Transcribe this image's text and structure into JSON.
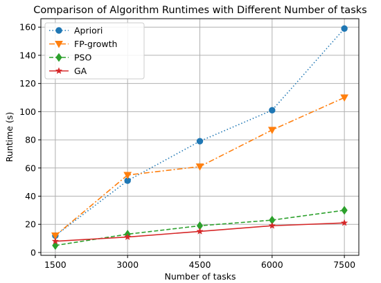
{
  "chart_data": {
    "type": "line",
    "title": "Comparison of Algorithm Runtimes with Different Number of tasks",
    "xlabel": "Number of tasks",
    "ylabel": "Runtime (s)",
    "x": [
      1500,
      3000,
      4500,
      6000,
      7500
    ],
    "xticks": [
      "1500",
      "3000",
      "4500",
      "6000",
      "7500"
    ],
    "yticks": [
      "0",
      "20",
      "40",
      "60",
      "80",
      "100",
      "120",
      "140",
      "160"
    ],
    "xlim": [
      1200,
      7800
    ],
    "ylim": [
      -2,
      166
    ],
    "grid": true,
    "legend_position": "top-left",
    "series": [
      {
        "name": "Apriori",
        "values": [
          12,
          51,
          79,
          101,
          159
        ],
        "color": "#1f77b4",
        "linestyle": "dotted",
        "marker": "circle"
      },
      {
        "name": "FP-growth",
        "values": [
          12,
          55,
          61,
          87,
          110
        ],
        "color": "#ff7f0e",
        "linestyle": "dashdot",
        "marker": "triangle-down"
      },
      {
        "name": "PSO",
        "values": [
          5,
          13,
          19,
          23,
          30
        ],
        "color": "#2ca02c",
        "linestyle": "dashed",
        "marker": "diamond"
      },
      {
        "name": "GA",
        "values": [
          8,
          11,
          15,
          19,
          21
        ],
        "color": "#d62728",
        "linestyle": "solid",
        "marker": "star"
      }
    ]
  }
}
